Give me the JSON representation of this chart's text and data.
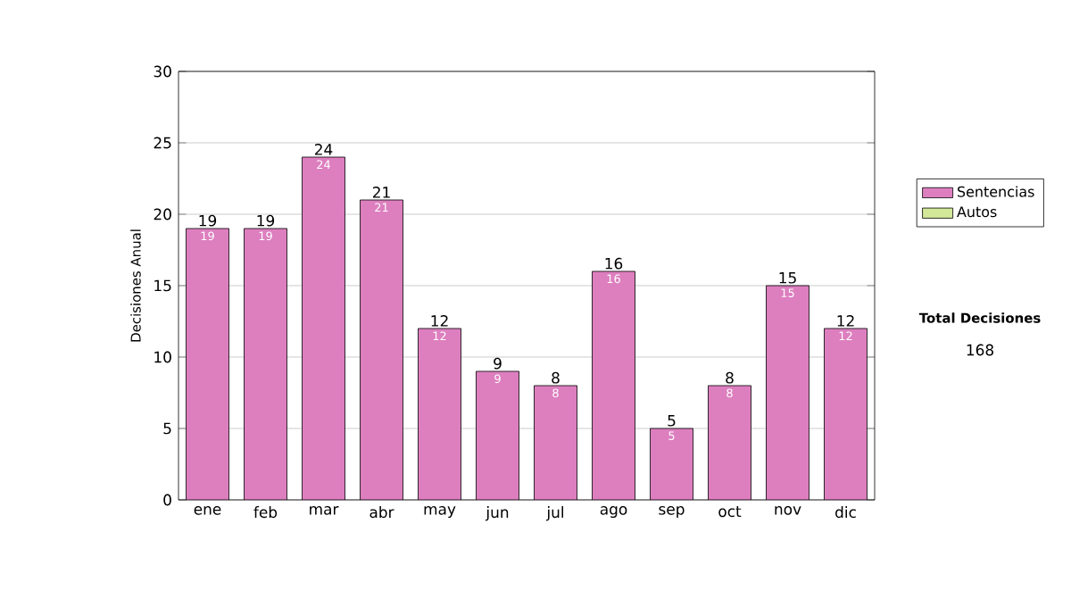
{
  "chart_data": {
    "type": "bar",
    "stacked": true,
    "ylabel": "Decisiones Anual",
    "categories": [
      "ene",
      "feb",
      "mar",
      "abr",
      "may",
      "jun",
      "jul",
      "ago",
      "sep",
      "oct",
      "nov",
      "dic"
    ],
    "series": [
      {
        "name": "Sentencias",
        "color": "#dd7fbf",
        "values": [
          19,
          19,
          24,
          21,
          12,
          9,
          8,
          16,
          5,
          8,
          15,
          12
        ],
        "value_labels": [
          "19",
          "19",
          "24",
          "21",
          "12",
          "9",
          "8",
          "16",
          "5",
          "8",
          "15",
          "12"
        ]
      },
      {
        "name": "Autos",
        "color": "#d4e89a",
        "values": [
          0,
          0,
          0,
          0,
          0,
          0,
          0,
          0,
          0,
          0,
          0,
          0
        ]
      }
    ],
    "totals": [
      "19",
      "19",
      "24",
      "21",
      "12",
      "9",
      "8",
      "16",
      "5",
      "8",
      "15",
      "12"
    ],
    "ylim": [
      0,
      30
    ],
    "yticks": [
      0,
      5,
      10,
      15,
      20,
      25,
      30
    ],
    "grid": "y",
    "legend": "right",
    "annotations": [
      "Total Decisiones",
      "168"
    ]
  }
}
